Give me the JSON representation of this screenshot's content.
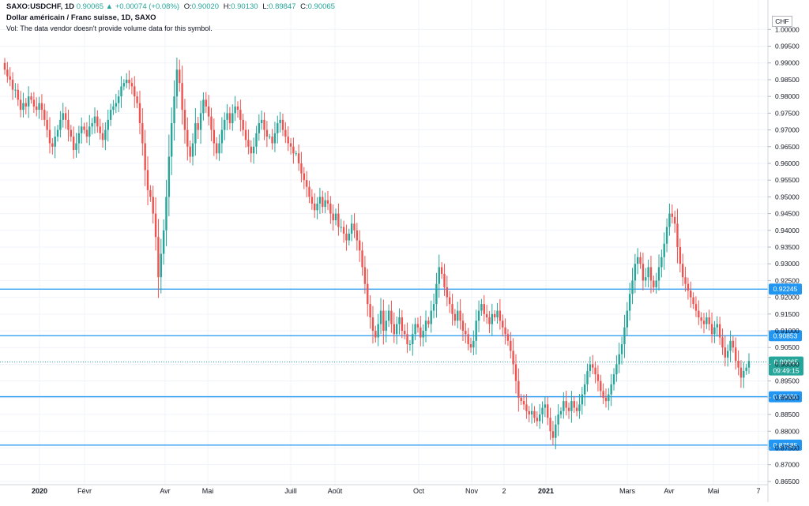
{
  "header": {
    "symbol": "SAXO:USDCHF, 1D",
    "o_val": "0.90065",
    "change": "+0.00074 (+0.08%)",
    "o_label": "O:",
    "o_value": "0.90020",
    "h_label": "H:",
    "h_value": "0.90130",
    "l_label": "L:",
    "l_value": "0.89847",
    "c_label": "C:",
    "c_value": "0.90065",
    "title": "Dollar américain / Franc suisse, 1D, SAXO",
    "volume_note": "Vol: The data vendor doesn't provide volume data for this symbol."
  },
  "currency": "CHF",
  "colors": {
    "up": "#26a69a",
    "down": "#ef5350",
    "line": "#2196f3",
    "grid": "#f0f3fa",
    "price": "#26a69a"
  },
  "chart_data": {
    "type": "candlestick",
    "title": "Dollar américain / Franc suisse, 1D, SAXO",
    "ylim": [
      0.8645,
      1.0055
    ],
    "y_ticks": [
      "1.00000",
      "0.99500",
      "0.99000",
      "0.98500",
      "0.98000",
      "0.97500",
      "0.97000",
      "0.96500",
      "0.96000",
      "0.95500",
      "0.95000",
      "0.94500",
      "0.94000",
      "0.93500",
      "0.93000",
      "0.92500",
      "0.92000",
      "0.91500",
      "0.91000",
      "0.90500",
      "0.90000",
      "0.89500",
      "0.89000",
      "0.88500",
      "0.88000",
      "0.87500",
      "0.87000",
      "0.86500"
    ],
    "x_ticks": [
      {
        "label": "2020",
        "bold": true
      },
      {
        "label": "Févr",
        "bold": false
      },
      {
        "label": "Avr",
        "bold": false
      },
      {
        "label": "Mai",
        "bold": false
      },
      {
        "label": "Juill",
        "bold": false
      },
      {
        "label": "Août",
        "bold": false
      },
      {
        "label": "Oct",
        "bold": false
      },
      {
        "label": "Nov",
        "bold": false
      },
      {
        "label": "2",
        "bold": false
      },
      {
        "label": "2021",
        "bold": true
      },
      {
        "label": "Mars",
        "bold": false
      },
      {
        "label": "Avr",
        "bold": false
      },
      {
        "label": "Mai",
        "bold": false
      },
      {
        "label": "7",
        "bold": false
      }
    ],
    "horizontal_lines": [
      {
        "value": 0.92245,
        "label": "0.92245"
      },
      {
        "value": 0.90853,
        "label": "0.90853"
      },
      {
        "value": 0.8903,
        "label": "0.89030"
      },
      {
        "value": 0.87585,
        "label": "0.87585"
      }
    ],
    "last_price": {
      "value": 0.90065,
      "label": "0.90065",
      "countdown": "09:49:15"
    },
    "closes": [
      0.988,
      0.986,
      0.985,
      0.982,
      0.982,
      0.979,
      0.976,
      0.978,
      0.977,
      0.98,
      0.979,
      0.977,
      0.976,
      0.978,
      0.976,
      0.973,
      0.97,
      0.966,
      0.965,
      0.968,
      0.97,
      0.973,
      0.975,
      0.973,
      0.97,
      0.968,
      0.964,
      0.966,
      0.969,
      0.971,
      0.97,
      0.968,
      0.971,
      0.972,
      0.974,
      0.971,
      0.969,
      0.967,
      0.97,
      0.973,
      0.976,
      0.977,
      0.978,
      0.98,
      0.983,
      0.984,
      0.985,
      0.984,
      0.983,
      0.98,
      0.978,
      0.972,
      0.966,
      0.958,
      0.952,
      0.95,
      0.945,
      0.938,
      0.926,
      0.933,
      0.94,
      0.95,
      0.962,
      0.972,
      0.98,
      0.988,
      0.984,
      0.976,
      0.97,
      0.965,
      0.962,
      0.966,
      0.972,
      0.97,
      0.975,
      0.979,
      0.977,
      0.974,
      0.97,
      0.966,
      0.963,
      0.966,
      0.97,
      0.973,
      0.975,
      0.972,
      0.975,
      0.977,
      0.976,
      0.973,
      0.97,
      0.967,
      0.965,
      0.963,
      0.965,
      0.969,
      0.972,
      0.973,
      0.97,
      0.968,
      0.968,
      0.966,
      0.969,
      0.972,
      0.973,
      0.97,
      0.968,
      0.966,
      0.965,
      0.963,
      0.963,
      0.96,
      0.957,
      0.955,
      0.953,
      0.95,
      0.948,
      0.946,
      0.948,
      0.95,
      0.947,
      0.949,
      0.948,
      0.945,
      0.943,
      0.945,
      0.941,
      0.941,
      0.939,
      0.937,
      0.939,
      0.942,
      0.94,
      0.937,
      0.934,
      0.929,
      0.924,
      0.918,
      0.914,
      0.91,
      0.908,
      0.912,
      0.916,
      0.91,
      0.913,
      0.916,
      0.912,
      0.909,
      0.912,
      0.914,
      0.91,
      0.909,
      0.906,
      0.906,
      0.909,
      0.912,
      0.911,
      0.908,
      0.91,
      0.913,
      0.912,
      0.916,
      0.918,
      0.924,
      0.929,
      0.927,
      0.923,
      0.92,
      0.918,
      0.915,
      0.913,
      0.916,
      0.913,
      0.91,
      0.909,
      0.906,
      0.905,
      0.907,
      0.913,
      0.916,
      0.918,
      0.915,
      0.914,
      0.912,
      0.915,
      0.914,
      0.916,
      0.913,
      0.911,
      0.909,
      0.907,
      0.904,
      0.9,
      0.895,
      0.89,
      0.889,
      0.888,
      0.886,
      0.885,
      0.886,
      0.884,
      0.883,
      0.885,
      0.887,
      0.888,
      0.884,
      0.88,
      0.878,
      0.882,
      0.885,
      0.886,
      0.889,
      0.887,
      0.886,
      0.889,
      0.887,
      0.886,
      0.888,
      0.891,
      0.894,
      0.898,
      0.9,
      0.899,
      0.897,
      0.895,
      0.892,
      0.89,
      0.889,
      0.891,
      0.894,
      0.897,
      0.9,
      0.903,
      0.906,
      0.911,
      0.916,
      0.921,
      0.925,
      0.93,
      0.932,
      0.93,
      0.925,
      0.926,
      0.929,
      0.925,
      0.923,
      0.925,
      0.929,
      0.932,
      0.936,
      0.941,
      0.945,
      0.944,
      0.942,
      0.935,
      0.93,
      0.926,
      0.924,
      0.922,
      0.92,
      0.918,
      0.916,
      0.914,
      0.913,
      0.912,
      0.914,
      0.912,
      0.909,
      0.911,
      0.912,
      0.908,
      0.905,
      0.902,
      0.904,
      0.907,
      0.905,
      0.901,
      0.899,
      0.896,
      0.898,
      0.899,
      0.901
    ]
  }
}
